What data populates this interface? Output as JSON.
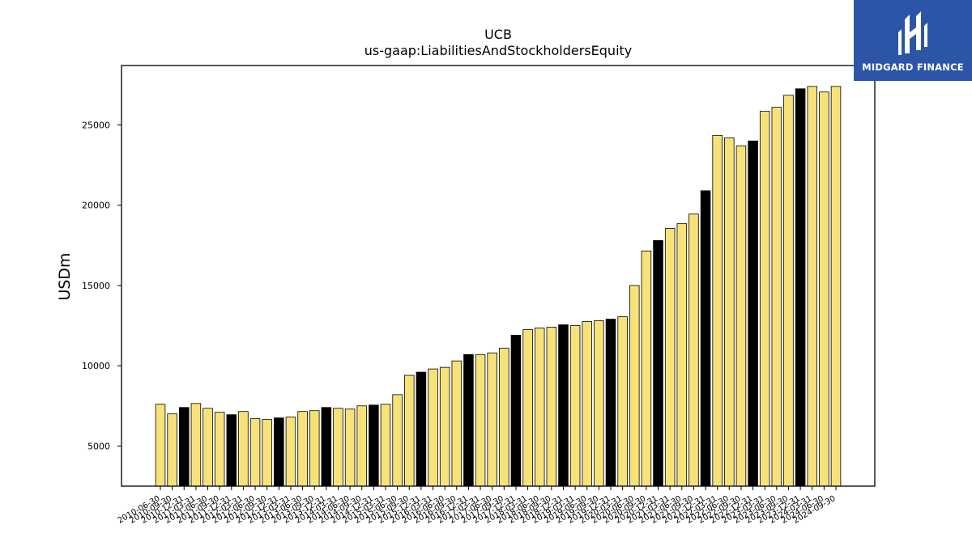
{
  "logo": {
    "text": "MIDGARD FINANCE",
    "bg_color": "#2c55a8"
  },
  "chart_data": {
    "type": "bar",
    "title": "UCB",
    "subtitle": "us-gaap:LiabilitiesAndStockholdersEquity",
    "xlabel": "",
    "ylabel": "USDm",
    "ylim": [
      2500,
      28700
    ],
    "yticks": [
      5000,
      10000,
      15000,
      20000,
      25000
    ],
    "grid": false,
    "colors": {
      "default": "#f7e27a",
      "highlight": "#000000",
      "edge": "#000000"
    },
    "categories": [
      "2010-06-30",
      "2010-09-30",
      "2010-12-31",
      "2011-03-31",
      "2011-06-30",
      "2011-09-30",
      "2011-12-31",
      "2012-03-31",
      "2012-06-30",
      "2012-09-30",
      "2012-12-31",
      "2013-03-31",
      "2013-06-30",
      "2013-09-30",
      "2013-12-31",
      "2014-03-31",
      "2014-06-30",
      "2014-09-30",
      "2014-12-31",
      "2015-03-31",
      "2015-06-30",
      "2015-09-30",
      "2015-12-31",
      "2016-03-31",
      "2016-06-30",
      "2016-09-30",
      "2016-12-31",
      "2017-03-31",
      "2017-06-30",
      "2017-09-30",
      "2017-12-31",
      "2018-03-31",
      "2018-06-30",
      "2018-09-30",
      "2018-12-31",
      "2019-03-31",
      "2019-06-30",
      "2019-09-30",
      "2019-12-31",
      "2020-03-31",
      "2020-06-30",
      "2020-09-30",
      "2020-12-31",
      "2021-03-31",
      "2021-06-30",
      "2021-09-30",
      "2021-12-31",
      "2022-03-31",
      "2022-06-30",
      "2022-09-30",
      "2022-12-31",
      "2023-03-31",
      "2023-06-30",
      "2023-09-30",
      "2023-12-31",
      "2024-03-31",
      "2024-06-30",
      "2024-09-30"
    ],
    "values": [
      7600,
      7000,
      7400,
      7650,
      7350,
      7100,
      6950,
      7150,
      6700,
      6650,
      6750,
      6800,
      7150,
      7200,
      7400,
      7350,
      7300,
      7500,
      7550,
      7600,
      8200,
      9400,
      9600,
      9800,
      9900,
      10300,
      10700,
      10700,
      10800,
      11100,
      11900,
      12250,
      12350,
      12400,
      12550,
      12500,
      12750,
      12800,
      12900,
      13050,
      15000,
      17150,
      17800,
      18550,
      18850,
      19450,
      20900,
      24350,
      24200,
      23700,
      24000,
      25850,
      26100,
      26850,
      27250,
      27400,
      27050,
      27400
    ],
    "highlight": [
      false,
      false,
      true,
      false,
      false,
      false,
      true,
      false,
      false,
      false,
      true,
      false,
      false,
      false,
      true,
      false,
      false,
      false,
      true,
      false,
      false,
      false,
      true,
      false,
      false,
      false,
      true,
      false,
      false,
      false,
      true,
      false,
      false,
      false,
      true,
      false,
      false,
      false,
      true,
      false,
      false,
      false,
      true,
      false,
      false,
      false,
      true,
      false,
      false,
      false,
      true,
      false,
      false,
      false,
      true,
      false,
      false,
      false
    ]
  }
}
